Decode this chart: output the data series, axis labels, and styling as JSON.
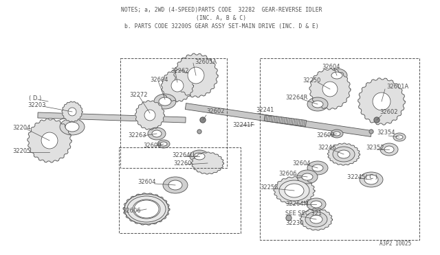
{
  "title_line1": "NOTES; a, 2WD (4-SPEED)PARTS CODE  32282  GEAR-REVERSE IDLER",
  "title_line2": "(INC. A, B & C)",
  "title_line3": "b. PARTS CODE 32200S GEAR ASSY SET-MAIN DRIVE (INC. D & E)",
  "footer": "A3P2 I0025",
  "bg_color": "#ffffff",
  "lc": "#505050",
  "shaft_color": "#d8d8d8",
  "gear_fill": "#e8e8e8",
  "gear_edge": "#505050",
  "ring_fill": "#d8d8d8",
  "white": "#ffffff",
  "figw": 6.4,
  "figh": 3.72,
  "dpi": 100
}
